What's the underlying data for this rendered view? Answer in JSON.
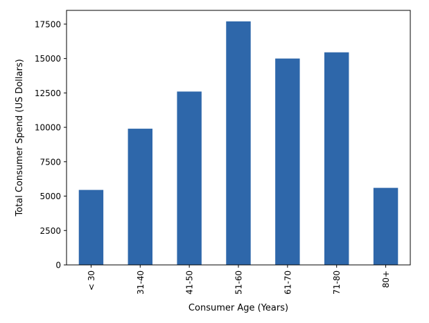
{
  "chart_data": {
    "type": "bar",
    "categories": [
      "< 30",
      "31-40",
      "41-50",
      "51-60",
      "61-70",
      "71-80",
      "80+"
    ],
    "values": [
      5450,
      9900,
      12600,
      17700,
      15000,
      15450,
      5600
    ],
    "xlabel": "Consumer Age (Years)",
    "ylabel": "Total Consumer Spend (US Dollars)",
    "ylim": [
      0,
      18500
    ],
    "yticks": [
      0,
      2500,
      5000,
      7500,
      10000,
      12500,
      15000,
      17500
    ],
    "ytick_labels": [
      "0",
      "2500",
      "5000",
      "7500",
      "10000",
      "12500",
      "15000",
      "17500"
    ],
    "bar_color": "#2e67aa",
    "grid": false,
    "legend": "none"
  }
}
